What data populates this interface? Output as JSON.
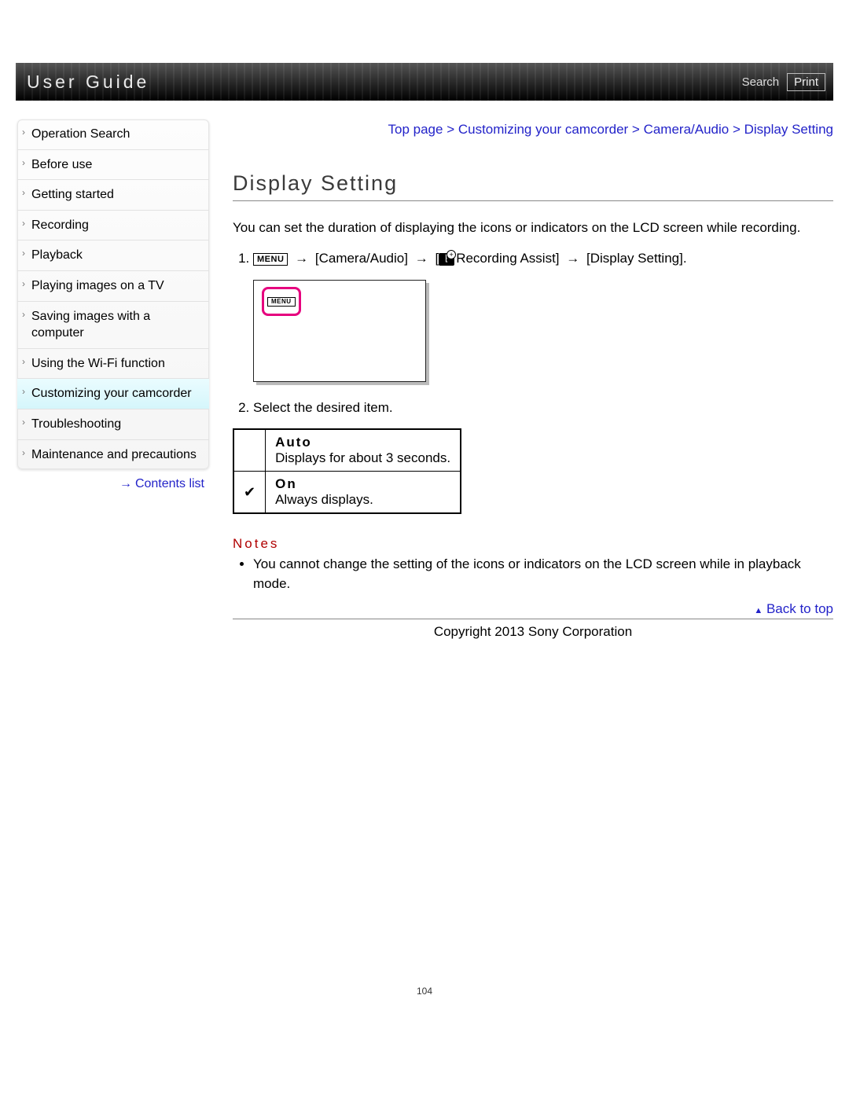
{
  "header": {
    "title": "User Guide",
    "search_label": "Search",
    "print_label": "Print"
  },
  "sidebar": {
    "items": [
      {
        "label": "Operation Search"
      },
      {
        "label": "Before use"
      },
      {
        "label": "Getting started"
      },
      {
        "label": "Recording"
      },
      {
        "label": "Playback"
      },
      {
        "label": "Playing images on a TV"
      },
      {
        "label": "Saving images with a computer"
      },
      {
        "label": "Using the Wi-Fi function"
      },
      {
        "label": "Customizing your camcorder"
      },
      {
        "label": "Troubleshooting"
      },
      {
        "label": "Maintenance and precautions"
      }
    ],
    "active_index": 8,
    "contents_list_label": "Contents list"
  },
  "breadcrumb": "Top page > Customizing your camcorder > Camera/Audio > Display Setting",
  "page_title": "Display Setting",
  "intro": "You can set the duration of displaying the icons or indicators on the LCD screen while recording.",
  "step1": {
    "menu_label": "MENU",
    "seg1": "[Camera/Audio]",
    "seg2": "Recording Assist]",
    "seg2_prefix": "[",
    "seg3": "[Display Setting].",
    "arrow": "→"
  },
  "step2": "Select the desired item.",
  "options": [
    {
      "checked": false,
      "name": "Auto",
      "desc": "Displays for about 3 seconds."
    },
    {
      "checked": true,
      "name": "On",
      "desc": "Always displays."
    }
  ],
  "notes": {
    "title": "Notes",
    "items": [
      "You cannot change the setting of the icons or indicators on the LCD screen while in playback mode."
    ]
  },
  "back_to_top": "Back to top",
  "copyright": "Copyright 2013 Sony Corporation",
  "page_number": "104",
  "colors": {
    "link": "#2323c9",
    "notes_title": "#b00000",
    "highlight": "#e6007e"
  }
}
